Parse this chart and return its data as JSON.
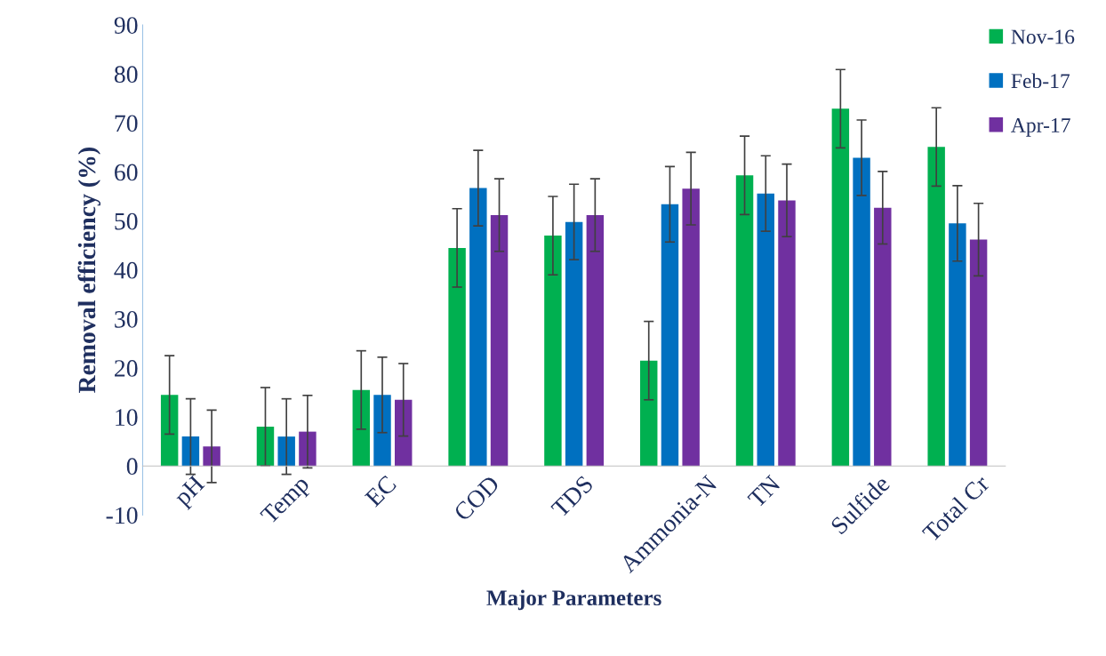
{
  "chart_data": {
    "type": "bar",
    "xlabel": "Major Parameters",
    "ylabel": "Removal efficiency (%)",
    "categories": [
      "pH",
      "Temp",
      "EC",
      "COD",
      "TDS",
      "Ammonia-N",
      "TN",
      "Sulfide",
      "Total Cr"
    ],
    "series": [
      {
        "name": "Nov-16",
        "color": "#00b050",
        "values": [
          14.5,
          8,
          15.5,
          44.5,
          47,
          21.5,
          59.3,
          72.9,
          65.1
        ],
        "errors": [
          8,
          8,
          8,
          8,
          8,
          8,
          8,
          8,
          8
        ]
      },
      {
        "name": "Feb-17",
        "color": "#0070c0",
        "values": [
          6,
          6,
          14.5,
          56.7,
          49.8,
          53.4,
          55.6,
          62.9,
          49.5
        ],
        "errors": [
          7.7,
          7.7,
          7.7,
          7.7,
          7.7,
          7.7,
          7.7,
          7.7,
          7.7
        ]
      },
      {
        "name": "Apr-17",
        "color": "#7030a0",
        "values": [
          4,
          7,
          13.5,
          51.2,
          51.2,
          56.6,
          54.2,
          52.7,
          46.2
        ],
        "errors": [
          7.4,
          7.4,
          7.4,
          7.4,
          7.4,
          7.4,
          7.4,
          7.4,
          7.4
        ]
      }
    ],
    "ylim": [
      -10,
      90
    ],
    "yticks": [
      -10,
      0,
      10,
      20,
      30,
      40,
      50,
      60,
      70,
      80,
      90
    ],
    "grid": false,
    "legend": "top right"
  }
}
